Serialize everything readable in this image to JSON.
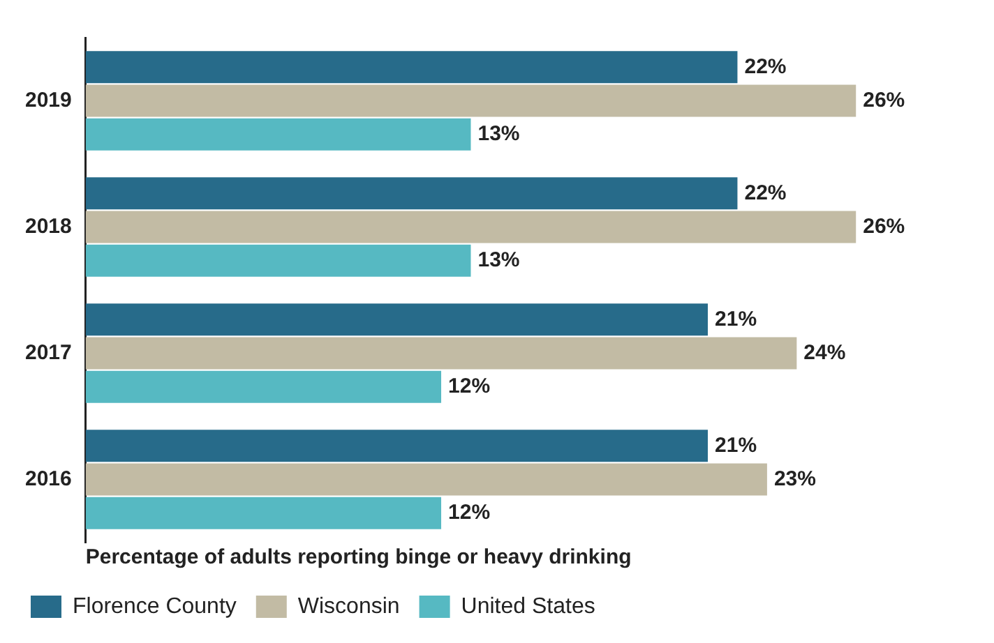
{
  "chart_data": {
    "type": "bar",
    "orientation": "horizontal",
    "categories": [
      "2019",
      "2018",
      "2017",
      "2016"
    ],
    "xlabel": "Percentage of adults reporting binge or heavy drinking",
    "series": [
      {
        "name": "Florence County",
        "color": "#276b8a",
        "values": [
          22,
          22,
          21,
          21
        ],
        "value_labels": [
          "22%",
          "22%",
          "21%",
          "21%"
        ]
      },
      {
        "name": "Wisconsin",
        "color": "#c2bba4",
        "values": [
          26,
          26,
          24,
          23
        ],
        "value_labels": [
          "26%",
          "26%",
          "24%",
          "23%"
        ]
      },
      {
        "name": "United States",
        "color": "#56b9c2",
        "values": [
          13,
          13,
          12,
          12
        ],
        "value_labels": [
          "13%",
          "13%",
          "12%",
          "12%"
        ]
      }
    ],
    "legend": "bottom left",
    "grid": false,
    "tick_labels": "y"
  }
}
